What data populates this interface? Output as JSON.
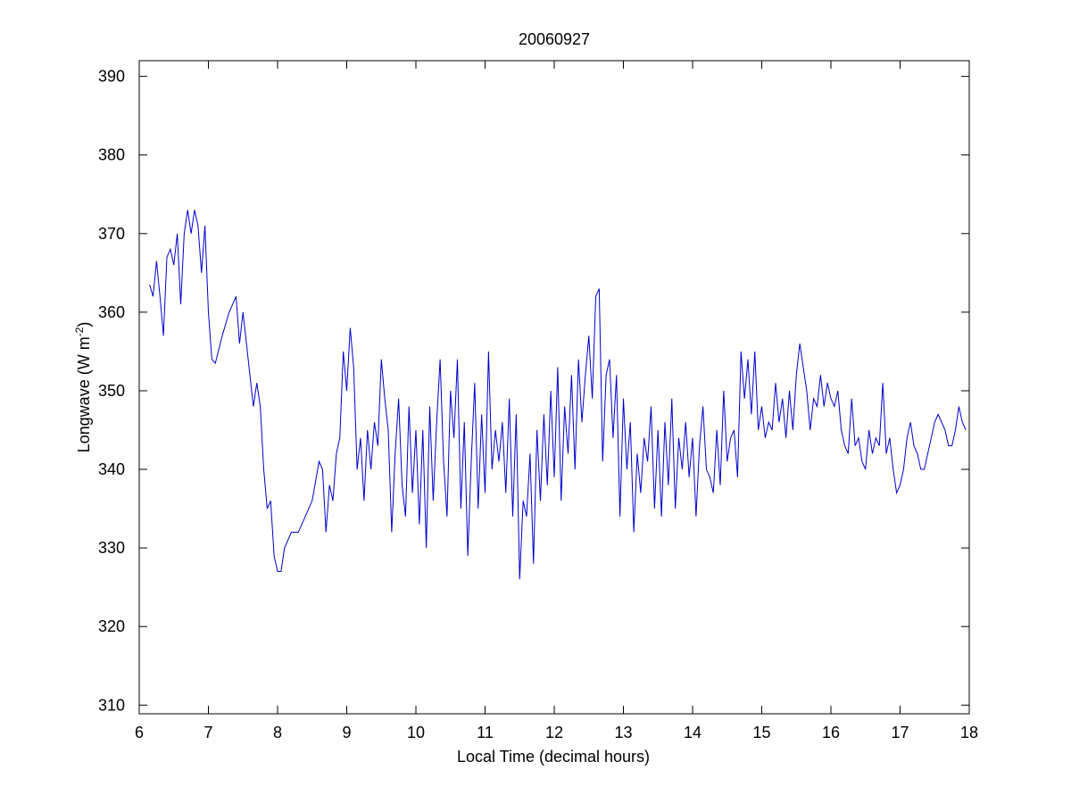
{
  "chart_data": {
    "type": "line",
    "title": "20060927",
    "xlabel": "Local Time (decimal hours)",
    "ylabel": {
      "text": "Longwave (W m",
      "sup": "-2",
      "after": ")"
    },
    "xlim": [
      6,
      18
    ],
    "ylim": [
      308.9,
      392
    ],
    "xticks": [
      6,
      7,
      8,
      9,
      10,
      11,
      12,
      13,
      14,
      15,
      16,
      17,
      18
    ],
    "yticks": [
      310,
      320,
      330,
      340,
      350,
      360,
      370,
      380,
      390
    ],
    "grid": false,
    "series": [
      {
        "color": "#0000cc",
        "x": [
          6.15,
          6.2,
          6.25,
          6.3,
          6.35,
          6.4,
          6.45,
          6.5,
          6.55,
          6.6,
          6.65,
          6.7,
          6.75,
          6.8,
          6.85,
          6.9,
          6.95,
          7.0,
          7.05,
          7.1,
          7.2,
          7.3,
          7.35,
          7.4,
          7.45,
          7.5,
          7.55,
          7.6,
          7.65,
          7.7,
          7.75,
          7.8,
          7.85,
          7.9,
          7.95,
          8.0,
          8.05,
          8.1,
          8.2,
          8.3,
          8.4,
          8.5,
          8.6,
          8.65,
          8.7,
          8.75,
          8.8,
          8.85,
          8.9,
          8.95,
          9.0,
          9.05,
          9.1,
          9.15,
          9.2,
          9.25,
          9.3,
          9.35,
          9.4,
          9.45,
          9.5,
          9.55,
          9.6,
          9.65,
          9.7,
          9.75,
          9.8,
          9.85,
          9.9,
          9.95,
          10.0,
          10.05,
          10.1,
          10.15,
          10.2,
          10.25,
          10.3,
          10.35,
          10.4,
          10.45,
          10.5,
          10.55,
          10.6,
          10.65,
          10.7,
          10.75,
          10.8,
          10.85,
          10.9,
          10.95,
          11.0,
          11.05,
          11.1,
          11.15,
          11.2,
          11.25,
          11.3,
          11.35,
          11.4,
          11.45,
          11.5,
          11.55,
          11.6,
          11.65,
          11.7,
          11.75,
          11.8,
          11.85,
          11.9,
          11.95,
          12.0,
          12.05,
          12.1,
          12.15,
          12.2,
          12.25,
          12.3,
          12.35,
          12.4,
          12.45,
          12.5,
          12.55,
          12.6,
          12.65,
          12.7,
          12.75,
          12.8,
          12.85,
          12.9,
          12.95,
          13.0,
          13.05,
          13.1,
          13.15,
          13.2,
          13.25,
          13.3,
          13.35,
          13.4,
          13.45,
          13.5,
          13.55,
          13.6,
          13.65,
          13.7,
          13.75,
          13.8,
          13.85,
          13.9,
          13.95,
          14.0,
          14.05,
          14.1,
          14.15,
          14.2,
          14.25,
          14.3,
          14.35,
          14.4,
          14.45,
          14.5,
          14.55,
          14.6,
          14.65,
          14.7,
          14.75,
          14.8,
          14.85,
          14.9,
          14.95,
          15.0,
          15.05,
          15.1,
          15.15,
          15.2,
          15.25,
          15.3,
          15.35,
          15.4,
          15.45,
          15.5,
          15.55,
          15.6,
          15.65,
          15.7,
          15.75,
          15.8,
          15.85,
          15.9,
          15.95,
          16.0,
          16.05,
          16.1,
          16.15,
          16.2,
          16.25,
          16.3,
          16.35,
          16.4,
          16.45,
          16.5,
          16.55,
          16.6,
          16.65,
          16.7,
          16.75,
          16.8,
          16.85,
          16.9,
          16.95,
          17.0,
          17.05,
          17.1,
          17.15,
          17.2,
          17.25,
          17.3,
          17.35,
          17.4,
          17.45,
          17.5,
          17.55,
          17.6,
          17.65,
          17.7,
          17.75,
          17.8,
          17.85,
          17.9,
          17.95
        ],
        "values": [
          363.5,
          362,
          366.5,
          362,
          357,
          367,
          368,
          366,
          370,
          361,
          370,
          373,
          370,
          373,
          371,
          365,
          371,
          360,
          354,
          353.5,
          357,
          360,
          361,
          362,
          356,
          360,
          356,
          352,
          348,
          351,
          348,
          340,
          335,
          336,
          329,
          327,
          327,
          330,
          332,
          332,
          334,
          336,
          341,
          340,
          332,
          338,
          336,
          342,
          344,
          355,
          350,
          358,
          353,
          340,
          344,
          336,
          345,
          340,
          346,
          343,
          354,
          349,
          345,
          332,
          342,
          349,
          338,
          334,
          348,
          337,
          345,
          333,
          345,
          330,
          348,
          336,
          346,
          354,
          341,
          334,
          350,
          344,
          354,
          335,
          346,
          329,
          341,
          351,
          335,
          347,
          337,
          355,
          340,
          345,
          341,
          346,
          337,
          349,
          334,
          347,
          326,
          336,
          334,
          342,
          328,
          345,
          336,
          347,
          338,
          350,
          339,
          353,
          336,
          348,
          342,
          352,
          340,
          354,
          346,
          352,
          357,
          349,
          362,
          363,
          341,
          352,
          354,
          344,
          352,
          334,
          349,
          340,
          346,
          332,
          342,
          337,
          344,
          341,
          348,
          335,
          345,
          334,
          346,
          338,
          349,
          335,
          344,
          340,
          346,
          339,
          344,
          334,
          343,
          348,
          340,
          339,
          337,
          345,
          338,
          350,
          341,
          344,
          345,
          339,
          355,
          349,
          354,
          347,
          355,
          345,
          348,
          344,
          346,
          345,
          351,
          346,
          349,
          344,
          350,
          345,
          352,
          356,
          353,
          350,
          345,
          349,
          348,
          352,
          348,
          351,
          349,
          348,
          350,
          345,
          343,
          342,
          349,
          343,
          344,
          341,
          340,
          345,
          342,
          344,
          343,
          351,
          342,
          344,
          340,
          337,
          338,
          340,
          344,
          346,
          343,
          342,
          340,
          340,
          342,
          344,
          346,
          347,
          346,
          345,
          343,
          343,
          345,
          348,
          346,
          345
        ]
      }
    ]
  }
}
